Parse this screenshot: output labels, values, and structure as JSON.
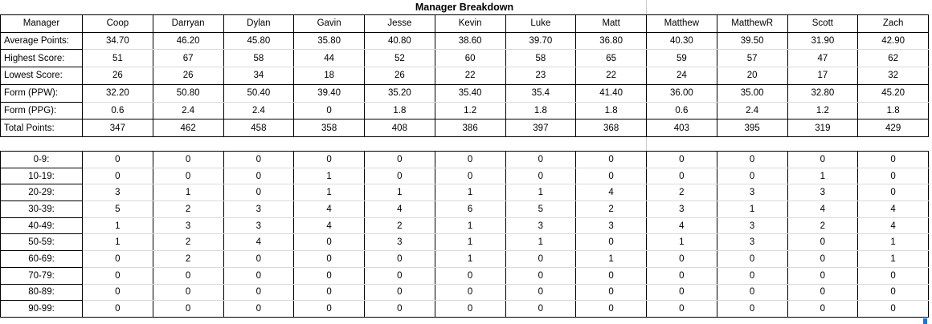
{
  "title": "Manager Breakdown",
  "managers": [
    "Coop",
    "Darryan",
    "Dylan",
    "Gavin",
    "Jesse",
    "Kevin",
    "Luke",
    "Matt",
    "Matthew",
    "MatthewR",
    "Scott",
    "Zach"
  ],
  "stats_table": {
    "corner_label": "Manager",
    "rows": [
      {
        "label": "Average Points:",
        "values": [
          "34.70",
          "46.20",
          "45.80",
          "35.80",
          "40.80",
          "38.60",
          "39.70",
          "36.80",
          "40.30",
          "39.50",
          "31.90",
          "42.90"
        ]
      },
      {
        "label": "Highest Score:",
        "values": [
          "51",
          "67",
          "58",
          "44",
          "52",
          "60",
          "58",
          "65",
          "59",
          "57",
          "47",
          "62"
        ]
      },
      {
        "label": "Lowest Score:",
        "values": [
          "26",
          "26",
          "34",
          "18",
          "26",
          "22",
          "23",
          "22",
          "24",
          "20",
          "17",
          "32"
        ]
      },
      {
        "label": "Form (PPW):",
        "values": [
          "32.20",
          "50.80",
          "50.40",
          "39.40",
          "35.20",
          "35.40",
          "35.4",
          "41.40",
          "36.00",
          "35.00",
          "32.80",
          "45.20"
        ]
      },
      {
        "label": "Form (PPG):",
        "values": [
          "0.6",
          "2.4",
          "2.4",
          "0",
          "1.8",
          "1.2",
          "1.8",
          "1.8",
          "0.6",
          "2.4",
          "1.2",
          "1.8"
        ]
      },
      {
        "label": "Total Points:",
        "values": [
          "347",
          "462",
          "458",
          "358",
          "408",
          "386",
          "397",
          "368",
          "403",
          "395",
          "319",
          "429"
        ]
      }
    ]
  },
  "distribution_table": {
    "rows": [
      {
        "label": "0-9:",
        "values": [
          "0",
          "0",
          "0",
          "0",
          "0",
          "0",
          "0",
          "0",
          "0",
          "0",
          "0",
          "0"
        ]
      },
      {
        "label": "10-19:",
        "values": [
          "0",
          "0",
          "0",
          "1",
          "0",
          "0",
          "0",
          "0",
          "0",
          "0",
          "1",
          "0"
        ]
      },
      {
        "label": "20-29:",
        "values": [
          "3",
          "1",
          "0",
          "1",
          "1",
          "1",
          "1",
          "4",
          "2",
          "3",
          "3",
          "0"
        ]
      },
      {
        "label": "30-39:",
        "values": [
          "5",
          "2",
          "3",
          "4",
          "4",
          "6",
          "5",
          "2",
          "3",
          "1",
          "4",
          "4"
        ]
      },
      {
        "label": "40-49:",
        "values": [
          "1",
          "3",
          "3",
          "4",
          "2",
          "1",
          "3",
          "3",
          "4",
          "3",
          "2",
          "4"
        ]
      },
      {
        "label": "50-59:",
        "values": [
          "1",
          "2",
          "4",
          "0",
          "3",
          "1",
          "1",
          "0",
          "1",
          "3",
          "0",
          "1"
        ]
      },
      {
        "label": "60-69:",
        "values": [
          "0",
          "2",
          "0",
          "0",
          "0",
          "1",
          "0",
          "1",
          "0",
          "0",
          "0",
          "1"
        ]
      },
      {
        "label": "70-79:",
        "values": [
          "0",
          "0",
          "0",
          "0",
          "0",
          "0",
          "0",
          "0",
          "0",
          "0",
          "0",
          "0"
        ]
      },
      {
        "label": "80-89:",
        "values": [
          "0",
          "0",
          "0",
          "0",
          "0",
          "0",
          "0",
          "0",
          "0",
          "0",
          "0",
          "0"
        ]
      },
      {
        "label": "90-99:",
        "values": [
          "0",
          "0",
          "0",
          "0",
          "0",
          "0",
          "0",
          "0",
          "0",
          "0",
          "0",
          "0"
        ]
      }
    ]
  },
  "colors": {
    "border": "#000000",
    "gridline": "#c9c9c9",
    "inner_gridline": "#d9d9d9",
    "selection_blue": "#1a73e8"
  }
}
